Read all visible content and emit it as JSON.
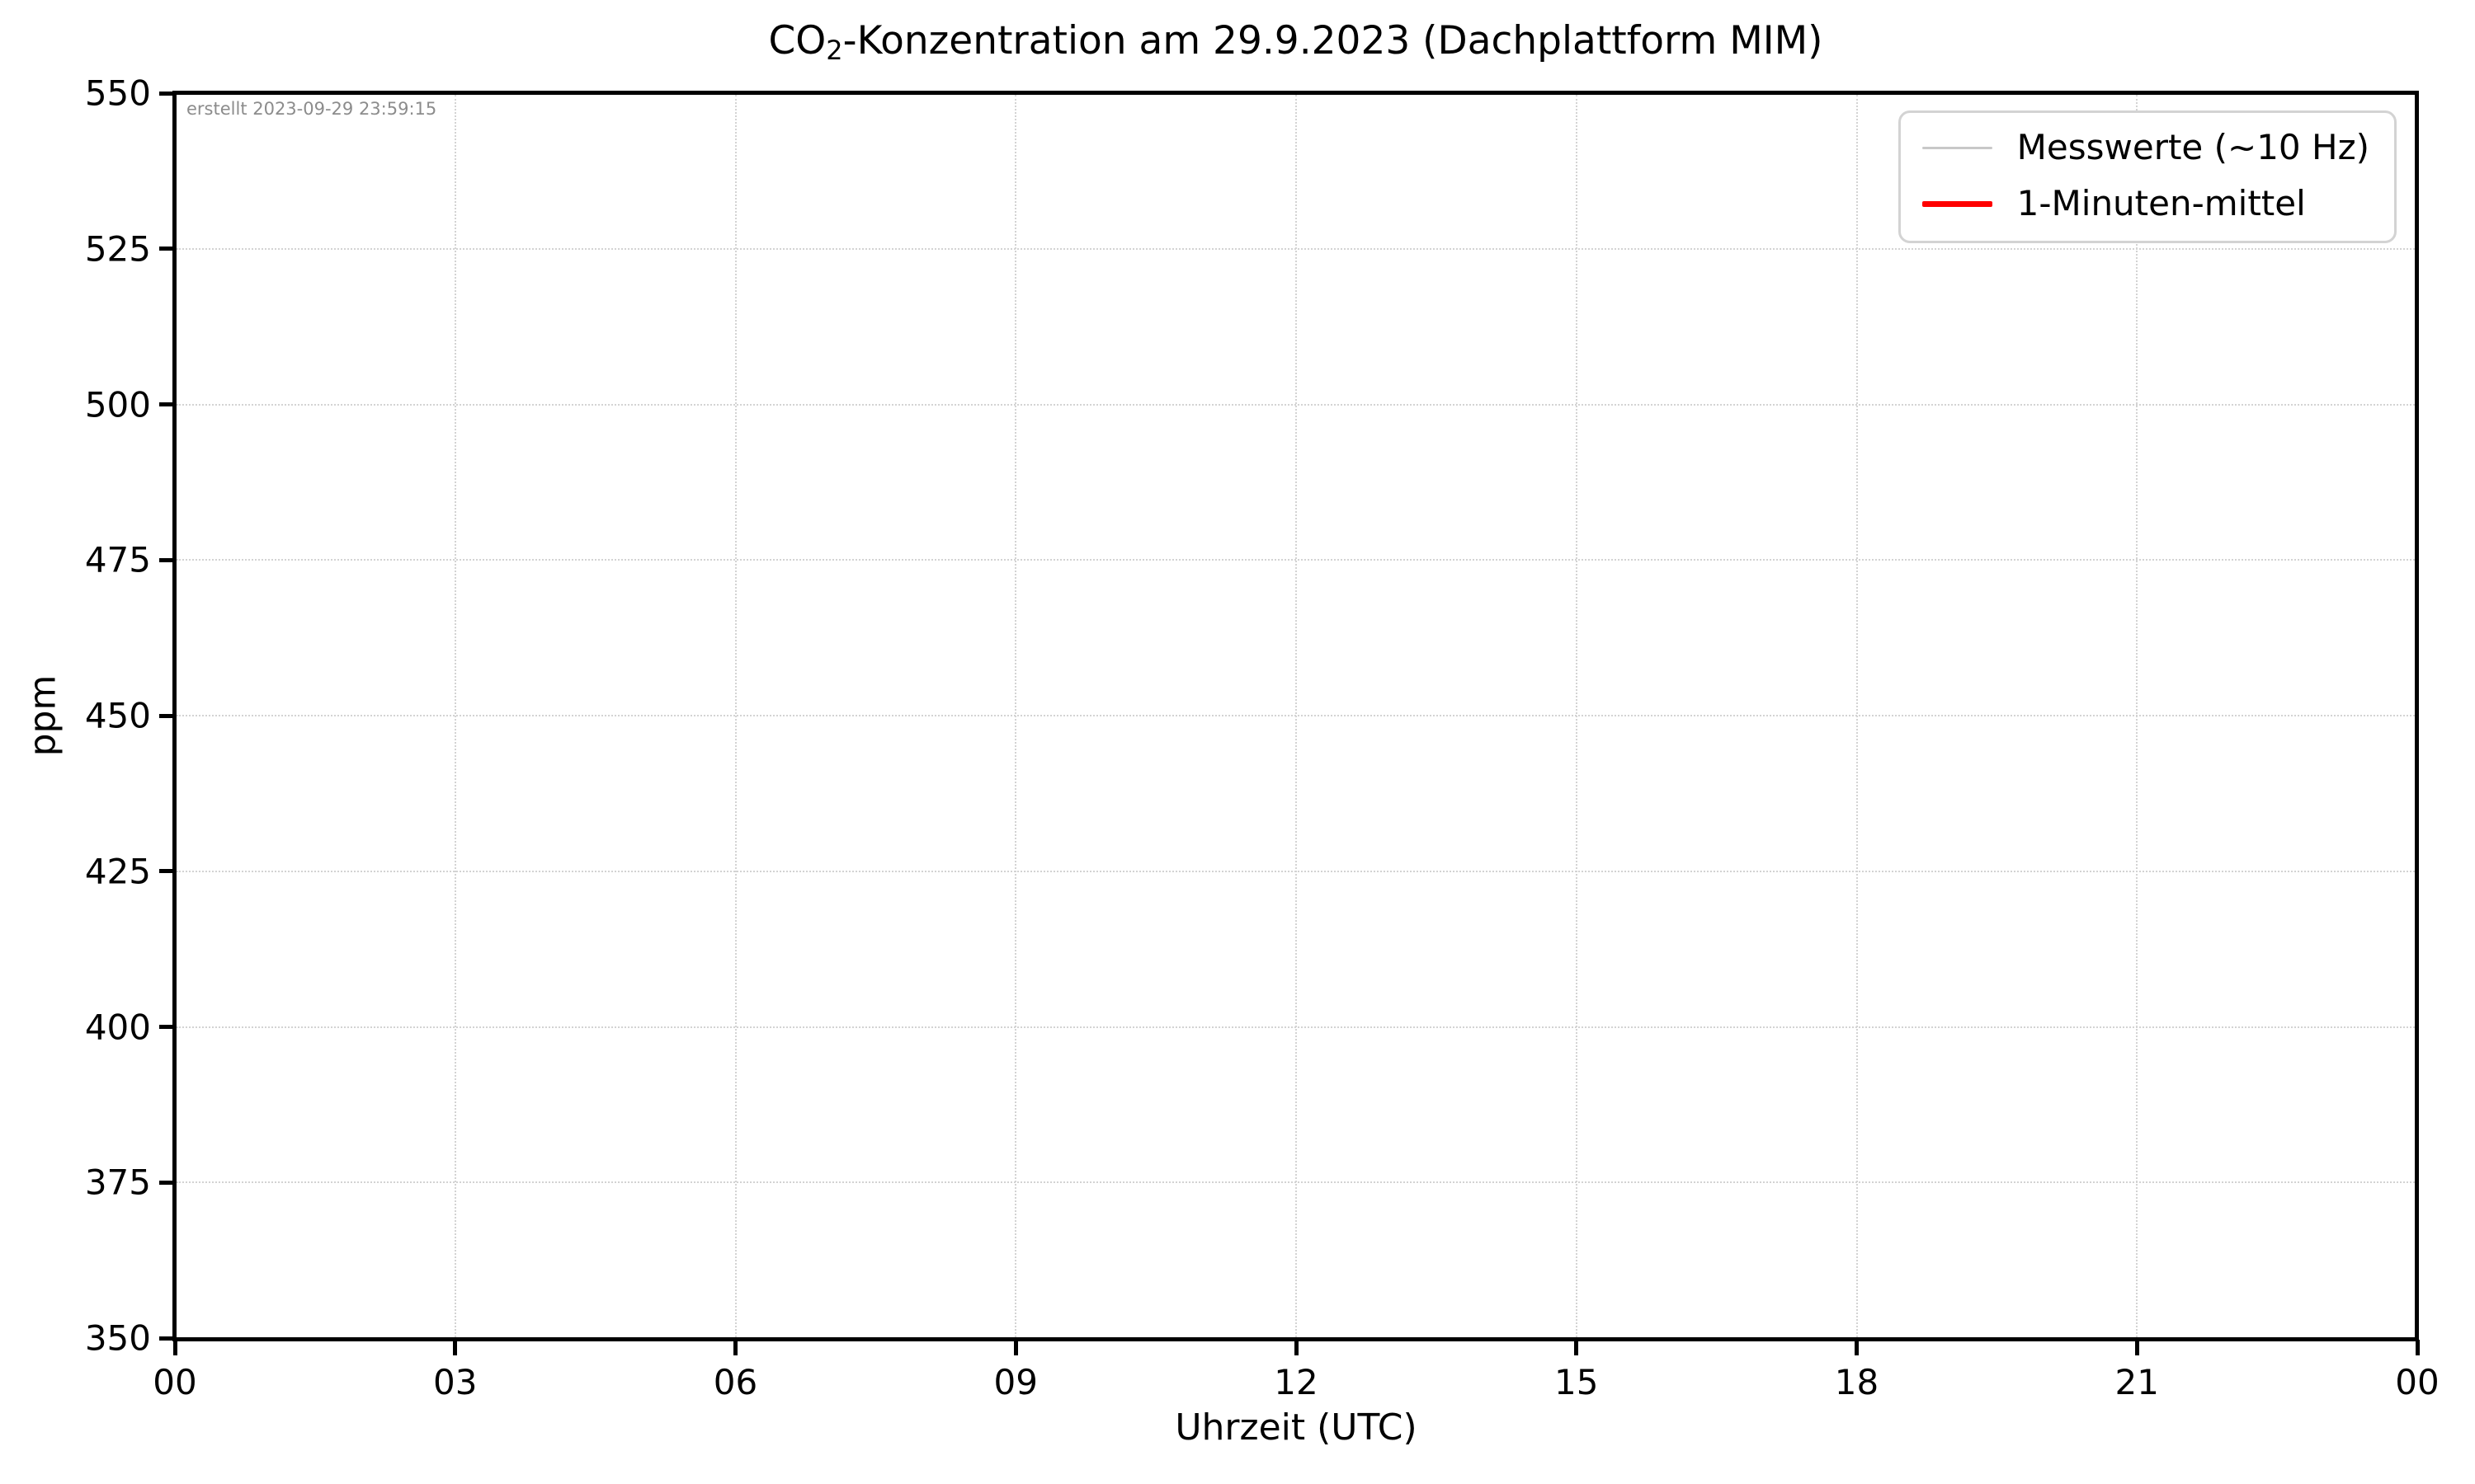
{
  "figure": {
    "title": {
      "prefix": "CO",
      "subscript": "2",
      "suffix": "-Konzentration am 29.9.2023 (Dachplattform MIM)"
    },
    "annotation": "erstellt 2023-09-29 23:59:15",
    "xlabel": "Uhrzeit (UTC)",
    "ylabel": "ppm"
  },
  "legend": {
    "position": "upper-right",
    "entries": [
      {
        "label": "Messwerte (~10 Hz)",
        "color": "#c8c8c8",
        "thickness": 3
      },
      {
        "label": "1-Minuten-mittel",
        "color": "#ff0000",
        "thickness": 7
      }
    ]
  },
  "chart_data": {
    "type": "line",
    "title": "CO₂-Konzentration am 29.9.2023 (Dachplattform MIM)",
    "xlabel": "Uhrzeit (UTC)",
    "ylabel": "ppm",
    "x_ticks": [
      "00",
      "03",
      "06",
      "09",
      "12",
      "15",
      "18",
      "21",
      "00"
    ],
    "y_ticks": [
      "550",
      "525",
      "500",
      "475",
      "450",
      "425",
      "400",
      "375",
      "350"
    ],
    "ylim": [
      350,
      550
    ],
    "x_range_hours": [
      0,
      24
    ],
    "grid": true,
    "grid_style": "dotted",
    "legend_position": "upper right",
    "annotation": "erstellt 2023-09-29 23:59:15",
    "series": [
      {
        "name": "Messwerte (~10 Hz)",
        "color": "#c8c8c8",
        "x": [],
        "values": []
      },
      {
        "name": "1-Minuten-mittel",
        "color": "#ff0000",
        "x": [],
        "values": []
      }
    ]
  },
  "colors": {
    "spine": "#000000",
    "grid": "#d3d3d3",
    "annotation_gray": "#8c8c8c",
    "legend_border": "#d3d3d3",
    "background": "#ffffff"
  }
}
